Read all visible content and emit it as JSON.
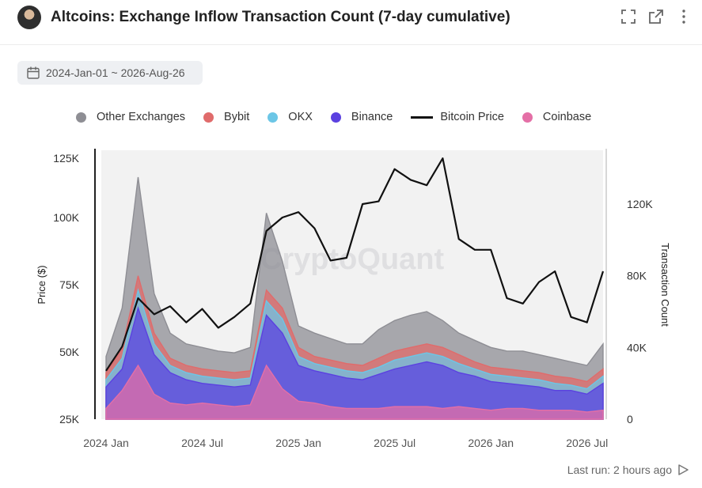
{
  "header": {
    "title": "Altcoins: Exchange Inflow Transaction Count (7-day cumulative)",
    "icons": [
      "avatar",
      "expand-icon",
      "external-link-icon",
      "more-vertical-icon"
    ]
  },
  "date_range": {
    "label": "2024-Jan-01 ~ 2026-Aug-26",
    "icon": "calendar-icon"
  },
  "footer": {
    "last_run": "Last run: 2 hours ago",
    "icon": "play-icon"
  },
  "chart_data": {
    "type": "area",
    "title": "Altcoins: Exchange Inflow Transaction Count (7-day cumulative)",
    "watermark": "CryptoQuant",
    "x_ticks": [
      "2024 Jan",
      "2024 Jul",
      "2025 Jan",
      "2025 Jul",
      "2026 Jan",
      "2026 Jul"
    ],
    "left_axis": {
      "label": "Price ($)",
      "ticks": [
        "25K",
        "50K",
        "75K",
        "100K",
        "125K"
      ],
      "range": [
        25000,
        125000
      ]
    },
    "right_axis": {
      "label": "Transaction Count",
      "ticks": [
        "0",
        "40K",
        "80K",
        "120K"
      ],
      "range": [
        0,
        150000
      ]
    },
    "x": [
      "2024-01",
      "2024-02",
      "2024-03",
      "2024-04",
      "2024-05",
      "2024-06",
      "2024-07",
      "2024-08",
      "2024-09",
      "2024-10",
      "2024-11",
      "2024-12",
      "2025-01",
      "2025-02",
      "2025-03",
      "2025-04",
      "2025-05",
      "2025-06",
      "2025-07",
      "2025-08",
      "2025-09",
      "2025-10",
      "2025-11",
      "2025-12",
      "2026-01",
      "2026-02",
      "2026-03",
      "2026-04",
      "2026-05",
      "2026-06",
      "2026-07",
      "2026-08"
    ],
    "series": [
      {
        "name": "Coinbase",
        "kind": "area",
        "color": "#e46fa6",
        "values": [
          6000,
          16000,
          30000,
          14000,
          9000,
          8000,
          9000,
          8000,
          7000,
          8000,
          30000,
          17000,
          10000,
          9000,
          7000,
          6000,
          6000,
          6000,
          7000,
          7000,
          7000,
          6000,
          7000,
          6000,
          5000,
          6000,
          6000,
          5000,
          5000,
          5000,
          4000,
          5000
        ]
      },
      {
        "name": "Binance",
        "kind": "area",
        "color": "#5b41e0",
        "values": [
          18000,
          28000,
          62000,
          36000,
          26000,
          22000,
          20000,
          19000,
          18000,
          19000,
          58000,
          48000,
          30000,
          27000,
          25000,
          23000,
          22000,
          25000,
          28000,
          30000,
          32000,
          30000,
          26000,
          24000,
          21000,
          20000,
          19000,
          18000,
          16000,
          16000,
          14000,
          20000
        ]
      },
      {
        "name": "OKX",
        "kind": "area",
        "color": "#6cc6e6",
        "values": [
          22000,
          34000,
          72000,
          42000,
          30000,
          26000,
          24000,
          23000,
          22000,
          23000,
          66000,
          56000,
          35000,
          31000,
          29000,
          27000,
          26000,
          29000,
          33000,
          35000,
          37000,
          35000,
          31000,
          28000,
          25000,
          24000,
          23000,
          22000,
          20000,
          19000,
          17000,
          24000
        ]
      },
      {
        "name": "Bybit",
        "kind": "area",
        "color": "#e06b6b",
        "values": [
          26000,
          39000,
          80000,
          48000,
          34000,
          30000,
          28000,
          27000,
          26000,
          27000,
          72000,
          62000,
          40000,
          35000,
          33000,
          31000,
          30000,
          34000,
          38000,
          40000,
          42000,
          40000,
          36000,
          32000,
          29000,
          28000,
          27000,
          26000,
          24000,
          23000,
          21000,
          28000
        ]
      },
      {
        "name": "Other Exchanges",
        "kind": "area",
        "color": "#8e8e94",
        "values": [
          35000,
          62000,
          135000,
          70000,
          48000,
          42000,
          40000,
          38000,
          37000,
          40000,
          115000,
          88000,
          52000,
          48000,
          45000,
          42000,
          42000,
          50000,
          55000,
          58000,
          60000,
          55000,
          48000,
          44000,
          40000,
          38000,
          38000,
          36000,
          34000,
          32000,
          30000,
          42000
        ]
      },
      {
        "name": "Bitcoin Price",
        "kind": "line",
        "color": "#111111",
        "values": [
          43000,
          52000,
          70000,
          64000,
          67000,
          61000,
          66000,
          59000,
          63000,
          68000,
          95000,
          100000,
          102000,
          96000,
          84000,
          85000,
          105000,
          106000,
          118000,
          114000,
          112000,
          122000,
          92000,
          88000,
          88000,
          70000,
          68000,
          76000,
          80000,
          63000,
          61000,
          80000
        ]
      }
    ]
  }
}
